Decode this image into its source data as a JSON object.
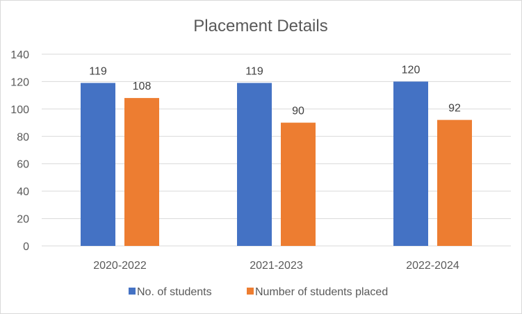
{
  "chart_data": {
    "type": "bar",
    "title": "Placement Details",
    "categories": [
      "2020-2022",
      "2021-2023",
      "2022-2024"
    ],
    "series": [
      {
        "name": "No. of students",
        "values": [
          119,
          119,
          120
        ],
        "color": "#4472c4"
      },
      {
        "name": "Number of students placed",
        "values": [
          108,
          90,
          92
        ],
        "color": "#ed7d31"
      }
    ],
    "ylim": [
      0,
      140
    ],
    "yticks": [
      0,
      20,
      40,
      60,
      80,
      100,
      120,
      140
    ],
    "grid": true,
    "data_labels": true,
    "legend": "bottom"
  }
}
